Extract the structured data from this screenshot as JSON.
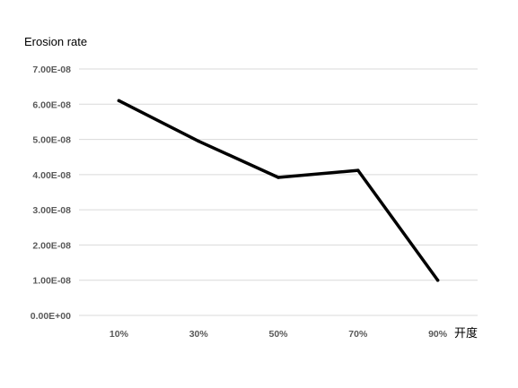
{
  "chart_data": {
    "type": "line",
    "title": "",
    "ylabel": "Erosion rate",
    "xlabel": "开度",
    "categories": [
      "10%",
      "30%",
      "50%",
      "70%",
      "90%"
    ],
    "series": [
      {
        "values": [
          6.1e-08,
          4.95e-08,
          3.92e-08,
          4.12e-08,
          1e-08
        ]
      }
    ],
    "yticks": [
      "0.00E+00",
      "1.00E-08",
      "2.00E-08",
      "3.00E-08",
      "4.00E-08",
      "5.00E-08",
      "6.00E-08",
      "7.00E-08"
    ],
    "ylim": [
      0,
      7e-08
    ],
    "grid": true,
    "legend": "none",
    "colors": {
      "line": "#000000",
      "grid": "#d9d9d9",
      "tick_text": "#595959"
    }
  }
}
